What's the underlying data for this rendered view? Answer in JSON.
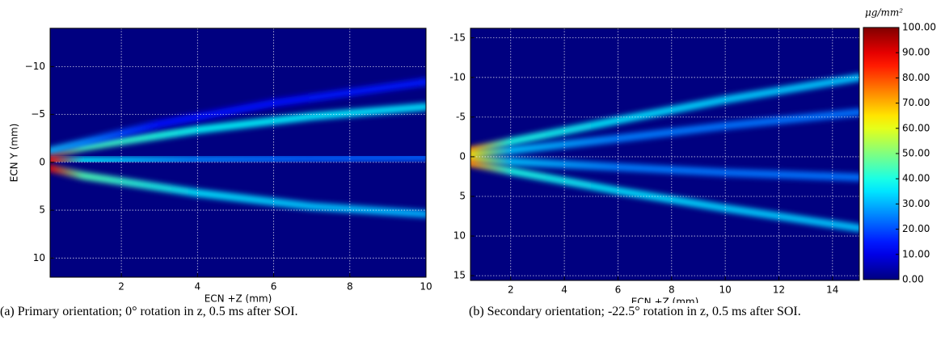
{
  "chart_data": [
    {
      "type": "heatmap",
      "colormap": "jet",
      "clim": [
        0,
        100
      ],
      "grid": true,
      "y_inverted": true,
      "xlabel": "ECN +Z (mm)",
      "ylabel": "ECN Y (mm)",
      "xlim": [
        0.13,
        10
      ],
      "ylim": [
        -14,
        12
      ],
      "xticks": [
        2,
        4,
        6,
        8,
        10
      ],
      "yticks": [
        {
          "value": -10,
          "label": "−10"
        },
        {
          "value": -5,
          "label": "−5"
        },
        {
          "value": 0,
          "label": "0"
        },
        {
          "value": 5,
          "label": "5"
        },
        {
          "value": 10,
          "label": "10"
        }
      ],
      "series": [
        {
          "x": [
            0.13,
            1,
            4,
            7,
            10
          ],
          "values": [
            -0.8,
            -1.6,
            -3.4,
            -4.8,
            -5.8
          ],
          "intensity": [
            90,
            45,
            38,
            36,
            35
          ]
        },
        {
          "x": [
            0.13,
            1,
            4,
            7,
            10
          ],
          "values": [
            -0.2,
            -0.2,
            -0.3,
            -0.4,
            -0.5
          ],
          "intensity": [
            85,
            35,
            25,
            22,
            22
          ]
        },
        {
          "x": [
            0.13,
            1,
            4,
            7,
            10
          ],
          "values": [
            0.6,
            1.4,
            3.2,
            4.6,
            5.4
          ],
          "intensity": [
            90,
            45,
            35,
            32,
            30
          ]
        },
        {
          "x": [
            0.13,
            3,
            6,
            10
          ],
          "values": [
            -1.2,
            -4,
            -6.2,
            -8.4
          ],
          "intensity": [
            30,
            14,
            14,
            15
          ]
        }
      ],
      "caption": "(a) Primary orientation; 0° rotation in z, 0.5 ms after SOI."
    },
    {
      "type": "heatmap",
      "colormap": "jet",
      "clim": [
        0,
        100
      ],
      "grid": true,
      "y_inverted": true,
      "xlabel": "ECN +Z (mm)",
      "xlim": [
        0.5,
        15
      ],
      "ylim": [
        -16.2,
        15.6
      ],
      "xticks": [
        2,
        4,
        6,
        8,
        10,
        12,
        14
      ],
      "yticks": [
        -15,
        -10,
        -5,
        0,
        5,
        10,
        15
      ],
      "series": [
        {
          "x": [
            0.5,
            2,
            6,
            10,
            15
          ],
          "values": [
            -0.8,
            -1.9,
            -4.6,
            -7.2,
            -10
          ],
          "intensity": [
            75,
            40,
            35,
            33,
            32
          ]
        },
        {
          "x": [
            0.5,
            2,
            6,
            10,
            15
          ],
          "values": [
            -0.3,
            -0.8,
            -2.3,
            -3.9,
            -5.6
          ],
          "intensity": [
            65,
            32,
            25,
            24,
            24
          ]
        },
        {
          "x": [
            0.5,
            2,
            6,
            10,
            15
          ],
          "values": [
            0.3,
            0.6,
            1.3,
            2,
            2.6
          ],
          "intensity": [
            65,
            32,
            25,
            24,
            24
          ]
        },
        {
          "x": [
            0.5,
            2,
            6,
            10,
            15
          ],
          "values": [
            0.8,
            1.8,
            4.3,
            6.5,
            9
          ],
          "intensity": [
            75,
            40,
            35,
            33,
            32
          ]
        }
      ],
      "colorbar": {
        "label": "μg/mm²",
        "ticks": [
          {
            "value": 0,
            "label": "0.00"
          },
          {
            "value": 10,
            "label": "10.00"
          },
          {
            "value": 20,
            "label": "20.00"
          },
          {
            "value": 30,
            "label": "30.00"
          },
          {
            "value": 40,
            "label": "40.00"
          },
          {
            "value": 50,
            "label": "50.00"
          },
          {
            "value": 60,
            "label": "60.00"
          },
          {
            "value": 70,
            "label": "70.00"
          },
          {
            "value": 80,
            "label": "80.00"
          },
          {
            "value": 90,
            "label": "90.00"
          },
          {
            "value": 100,
            "label": "100.00"
          }
        ]
      },
      "caption": "(b) Secondary orientation; -22.5° rotation in z, 0.5 ms after SOI."
    }
  ]
}
